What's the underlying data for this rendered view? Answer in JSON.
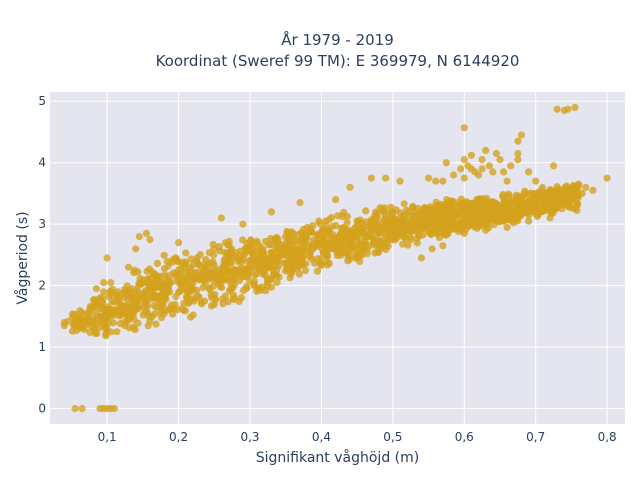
{
  "chart_data": {
    "type": "scatter",
    "title_line1": "År 1979 - 2019",
    "title_line2": "Koordinat (Sweref 99 TM): E 369979, N 6144920",
    "xlabel": "Signifikant våghöjd (m)",
    "ylabel": "Vågperiod (s)",
    "xlim": [
      0.02,
      0.825
    ],
    "ylim": [
      -0.25,
      5.15
    ],
    "x_ticks": [
      0.1,
      0.2,
      0.3,
      0.4,
      0.5,
      0.6,
      0.7,
      0.8
    ],
    "x_tick_labels": [
      "0,1",
      "0,2",
      "0,3",
      "0,4",
      "0,5",
      "0,6",
      "0,7",
      "0,8"
    ],
    "y_ticks": [
      0,
      1,
      2,
      3,
      4,
      5
    ],
    "y_tick_labels": [
      "0",
      "1",
      "2",
      "3",
      "4",
      "5"
    ],
    "grid": true,
    "marker_color": "#d4a21c",
    "plot_bg": "#e5e5ef",
    "band": [
      [
        0.05,
        1.25,
        1.6
      ],
      [
        0.1,
        1.1,
        2.0
      ],
      [
        0.15,
        1.25,
        2.4
      ],
      [
        0.2,
        1.4,
        2.6
      ],
      [
        0.25,
        1.55,
        2.75
      ],
      [
        0.3,
        1.75,
        2.85
      ],
      [
        0.35,
        2.0,
        3.0
      ],
      [
        0.4,
        2.2,
        3.15
      ],
      [
        0.45,
        2.35,
        3.25
      ],
      [
        0.5,
        2.55,
        3.35
      ],
      [
        0.55,
        2.7,
        3.4
      ],
      [
        0.6,
        2.85,
        3.45
      ],
      [
        0.65,
        2.95,
        3.5
      ],
      [
        0.7,
        3.1,
        3.6
      ],
      [
        0.76,
        3.2,
        3.7
      ]
    ],
    "points": [
      [
        0.055,
        0.0
      ],
      [
        0.065,
        0.0
      ],
      [
        0.09,
        0.0
      ],
      [
        0.095,
        0.0
      ],
      [
        0.1,
        0.0
      ],
      [
        0.105,
        0.0
      ],
      [
        0.11,
        0.0
      ],
      [
        0.095,
        1.9
      ],
      [
        0.105,
        1.9
      ],
      [
        0.115,
        1.9
      ],
      [
        0.125,
        1.9
      ],
      [
        0.135,
        1.95
      ],
      [
        0.095,
        2.05
      ],
      [
        0.105,
        2.05
      ],
      [
        0.1,
        2.45
      ],
      [
        0.13,
        2.3
      ],
      [
        0.14,
        2.6
      ],
      [
        0.145,
        2.8
      ],
      [
        0.155,
        2.85
      ],
      [
        0.16,
        2.75
      ],
      [
        0.2,
        2.7
      ],
      [
        0.09,
        1.8
      ],
      [
        0.085,
        1.95
      ],
      [
        0.26,
        3.1
      ],
      [
        0.29,
        3.0
      ],
      [
        0.33,
        3.2
      ],
      [
        0.37,
        3.35
      ],
      [
        0.42,
        3.4
      ],
      [
        0.44,
        3.6
      ],
      [
        0.47,
        3.75
      ],
      [
        0.49,
        3.75
      ],
      [
        0.51,
        3.7
      ],
      [
        0.55,
        3.75
      ],
      [
        0.56,
        3.7
      ],
      [
        0.57,
        3.7
      ],
      [
        0.585,
        3.8
      ],
      [
        0.6,
        3.75
      ],
      [
        0.61,
        3.9
      ],
      [
        0.615,
        3.85
      ],
      [
        0.625,
        3.9
      ],
      [
        0.625,
        4.05
      ],
      [
        0.635,
        3.95
      ],
      [
        0.64,
        3.85
      ],
      [
        0.655,
        3.85
      ],
      [
        0.66,
        3.7
      ],
      [
        0.645,
        4.15
      ],
      [
        0.675,
        4.05
      ],
      [
        0.675,
        4.35
      ],
      [
        0.68,
        4.45
      ],
      [
        0.675,
        4.15
      ],
      [
        0.69,
        3.85
      ],
      [
        0.7,
        3.5
      ],
      [
        0.72,
        3.55
      ],
      [
        0.725,
        3.95
      ],
      [
        0.74,
        3.5
      ],
      [
        0.75,
        3.55
      ],
      [
        0.76,
        3.65
      ],
      [
        0.77,
        3.6
      ],
      [
        0.78,
        3.55
      ],
      [
        0.8,
        3.75
      ],
      [
        0.765,
        3.5
      ],
      [
        0.7,
        3.7
      ],
      [
        0.73,
        3.4
      ],
      [
        0.595,
        3.9
      ],
      [
        0.6,
        4.05
      ],
      [
        0.605,
        3.95
      ],
      [
        0.62,
        3.8
      ],
      [
        0.63,
        4.2
      ],
      [
        0.65,
        4.05
      ],
      [
        0.665,
        3.95
      ],
      [
        0.61,
        4.12
      ],
      [
        0.575,
        4.0
      ],
      [
        0.6,
        4.57
      ],
      [
        0.73,
        4.87
      ],
      [
        0.74,
        4.85
      ],
      [
        0.745,
        4.87
      ],
      [
        0.755,
        4.9
      ],
      [
        0.54,
        2.45
      ],
      [
        0.555,
        2.6
      ],
      [
        0.57,
        2.65
      ],
      [
        0.6,
        2.85
      ],
      [
        0.63,
        2.9
      ],
      [
        0.66,
        2.95
      ],
      [
        0.69,
        3.05
      ],
      [
        0.72,
        3.1
      ],
      [
        0.04,
        1.35
      ],
      [
        0.04,
        1.4
      ],
      [
        0.045,
        1.42
      ]
    ]
  }
}
